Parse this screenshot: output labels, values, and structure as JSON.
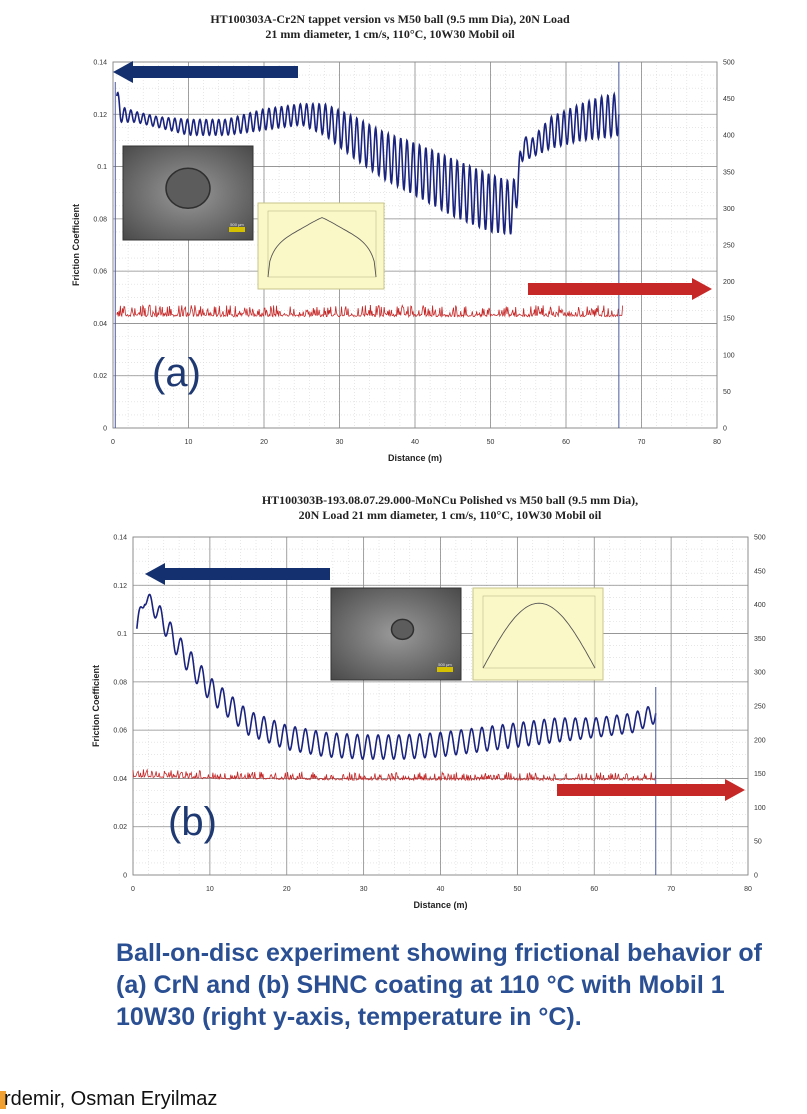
{
  "chart_data": [
    {
      "type": "line",
      "panel_label": "(a)",
      "title_lines": [
        "HT100303A-Cr2N tappet version vs M50 ball (9.5 mm Dia), 20N Load",
        "21 mm diameter, 1 cm/s, 110°C, 10W30 Mobil oil"
      ],
      "xlabel": "Distance (m)",
      "ylabel": "Friction Coefficient",
      "xlim": [
        0,
        80
      ],
      "ylim": [
        0,
        0.14
      ],
      "y2lim": [
        0,
        500
      ],
      "x_ticks": [
        "0",
        "10",
        "20",
        "30",
        "40",
        "50",
        "60",
        "70",
        "80"
      ],
      "y_ticks": [
        "0",
        "0.02",
        "0.04",
        "0.06",
        "0.08",
        "0.1",
        "0.12",
        "0.14"
      ],
      "y2_ticks": [
        "0",
        "50",
        "100",
        "150",
        "200",
        "250",
        "300",
        "350",
        "400",
        "450",
        "500"
      ],
      "grid": true,
      "series": [
        {
          "color": "#1a237e",
          "x": [
            0.5,
            1,
            3,
            6,
            10,
            15,
            20,
            25,
            28,
            32,
            36,
            40,
            45,
            50,
            53,
            54.5,
            55,
            58,
            62,
            65,
            67
          ],
          "y": [
            0.127,
            0.12,
            0.119,
            0.117,
            0.115,
            0.115,
            0.118,
            0.12,
            0.118,
            0.111,
            0.104,
            0.099,
            0.092,
            0.086,
            0.084,
            0.11,
            0.106,
            0.113,
            0.117,
            0.119,
            0.12
          ],
          "amplitude": [
            0.004,
            0.003,
            0.002,
            0.002,
            0.003,
            0.003,
            0.004,
            0.004,
            0.006,
            0.008,
            0.009,
            0.01,
            0.011,
            0.011,
            0.01,
            0.003,
            0.003,
            0.006,
            0.007,
            0.008,
            0.008
          ]
        },
        {
          "color": "#c62828",
          "axis": "right",
          "x": [
            0.5,
            67.5
          ],
          "y": [
            152,
            152
          ],
          "noise": 8
        }
      ],
      "annotations": [
        {
          "type": "arrow",
          "direction": "left",
          "color": "#14306e",
          "target": "left-axis"
        },
        {
          "type": "arrow",
          "direction": "right",
          "color": "#c62828",
          "target": "right-axis"
        },
        {
          "type": "inset-photo",
          "label": "500 μm"
        },
        {
          "type": "inset-profile"
        }
      ]
    },
    {
      "type": "line",
      "panel_label": "(b)",
      "title_lines": [
        "HT100303B-193.08.07.29.000-MoNCu Polished vs M50 ball (9.5 mm Dia),",
        "20N Load 21 mm diameter, 1 cm/s, 110°C, 10W30 Mobil oil"
      ],
      "xlabel": "Distance (m)",
      "ylabel": "Friction Coefficient",
      "xlim": [
        0,
        80
      ],
      "ylim": [
        0,
        0.14
      ],
      "y2lim": [
        0,
        500
      ],
      "x_ticks": [
        "0",
        "10",
        "20",
        "30",
        "40",
        "50",
        "60",
        "70",
        "80"
      ],
      "y_ticks": [
        "0",
        "0.02",
        "0.04",
        "0.06",
        "0.08",
        "0.1",
        "0.12",
        "0.14"
      ],
      "y2_ticks": [
        "0",
        "50",
        "100",
        "150",
        "200",
        "250",
        "300",
        "350",
        "400",
        "450",
        "500"
      ],
      "grid": true,
      "series": [
        {
          "color": "#1a237e",
          "x": [
            0.5,
            1.5,
            3,
            6,
            10,
            15,
            20,
            25,
            30,
            35,
            40,
            45,
            50,
            55,
            60,
            65,
            68
          ],
          "y": [
            0.102,
            0.115,
            0.11,
            0.094,
            0.077,
            0.063,
            0.057,
            0.054,
            0.053,
            0.053,
            0.054,
            0.056,
            0.058,
            0.06,
            0.061,
            0.063,
            0.067
          ],
          "amplitude": [
            0.004,
            0.003,
            0.004,
            0.005,
            0.005,
            0.005,
            0.005,
            0.005,
            0.005,
            0.005,
            0.005,
            0.005,
            0.005,
            0.005,
            0.004,
            0.004,
            0.004
          ]
        },
        {
          "color": "#c62828",
          "axis": "right",
          "x": [
            0,
            10,
            30,
            50,
            68
          ],
          "y": [
            145,
            142,
            140,
            140,
            140
          ],
          "noise": 6
        }
      ],
      "annotations": [
        {
          "type": "arrow",
          "direction": "left",
          "color": "#14306e",
          "target": "left-axis"
        },
        {
          "type": "arrow",
          "direction": "right",
          "color": "#c62828",
          "target": "right-axis"
        },
        {
          "type": "inset-photo",
          "label": "500 μm"
        },
        {
          "type": "inset-profile"
        }
      ]
    }
  ],
  "caption": "Ball-on-disc experiment showing frictional behavior of (a) CrN and (b) SHNC coating at 110 °C with Mobil 1 10W30 (right  y-axis, temperature in °C).",
  "footer_text": "rdemir, Osman Eryilmaz"
}
